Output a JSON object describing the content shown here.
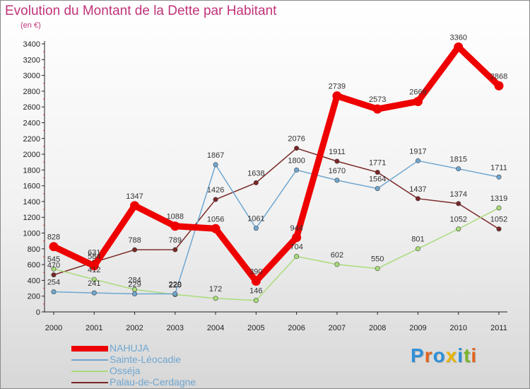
{
  "title": "Evolution du Montant de la Dette par Habitant",
  "unit_label": "(en €)",
  "logo": {
    "letters": [
      "P",
      "r",
      "o",
      "x",
      "i",
      "t",
      "i"
    ],
    "colors": [
      "#2e8fd8",
      "#e2641e",
      "#2e8fd8",
      "#e8b400",
      "#2e8fd8",
      "#7ab62c",
      "#e2641e"
    ]
  },
  "chart_data": {
    "type": "line",
    "x": [
      "2000",
      "2001",
      "2002",
      "2003",
      "2004",
      "2005",
      "2006",
      "2007",
      "2008",
      "2009",
      "2010",
      "2011"
    ],
    "ylim": [
      0,
      3400
    ],
    "yticks": [
      "0",
      "200",
      "400",
      "600",
      "800",
      "1000",
      "1200",
      "1400",
      "1600",
      "1800",
      "2000",
      "2200",
      "2400",
      "2600",
      "2800",
      "3000",
      "3200",
      "3400"
    ],
    "grid": false,
    "legend_position": "bottom-left",
    "series": [
      {
        "name": "NAHUJA",
        "color": "#ee0000",
        "values": [
          828,
          584,
          1347,
          1088,
          1056,
          390,
          944,
          2739,
          2573,
          2669,
          3360,
          2868
        ],
        "labels": [
          "828",
          "584",
          "1347",
          "1088",
          "1056",
          "390",
          "944",
          "2739",
          "2573",
          "2669",
          "3360",
          "2868"
        ]
      },
      {
        "name": "Sainte-Léocadie",
        "color": "#6fa6d0",
        "values": [
          254,
          241,
          229,
          229,
          1867,
          1061,
          1800,
          1670,
          1564,
          1917,
          1815,
          1711
        ],
        "labels": [
          "254",
          "241",
          "229",
          "229",
          "1867",
          "1061",
          "1800",
          "1670",
          "1564",
          "1917",
          "1815",
          "1711"
        ]
      },
      {
        "name": "Osséja",
        "color": "#a9dc7a",
        "values": [
          545,
          412,
          284,
          220,
          172,
          146,
          704,
          602,
          550,
          801,
          1052,
          1319
        ],
        "labels": [
          "545",
          "412",
          "284",
          "220",
          "172",
          "146",
          "704",
          "602",
          "550",
          "801",
          "1052",
          "1319"
        ]
      },
      {
        "name": "Palau-de-Cerdagne",
        "color": "#7a2626",
        "values": [
          470,
          631,
          788,
          789,
          1426,
          1638,
          2076,
          1911,
          1771,
          1437,
          1374,
          1052
        ],
        "labels": [
          "470",
          "631",
          "788",
          "789",
          "1426",
          "1638",
          "2076",
          "1911",
          "1771",
          "1437",
          "1374",
          "1052"
        ]
      }
    ]
  }
}
